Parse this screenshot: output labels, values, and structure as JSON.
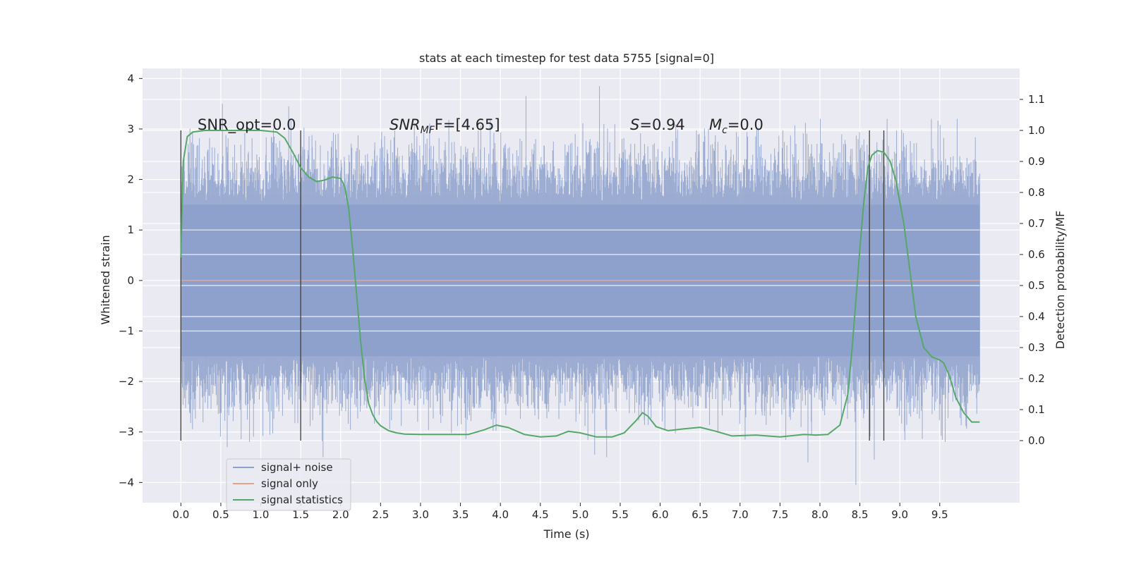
{
  "chart_data": {
    "type": "line",
    "title": "stats at each timestep for test data 5755 [signal=0]",
    "xlabel": "Time (s)",
    "ylabel_left": "Whitened strain",
    "ylabel_right": "Detection probability/MF",
    "xlim": [
      -0.48,
      10.5
    ],
    "ylim_left": [
      -4.4,
      4.2
    ],
    "ylim_right": [
      -0.2,
      1.2
    ],
    "x_ticks": [
      "0.0",
      "0.5",
      "1.0",
      "1.5",
      "2.0",
      "2.5",
      "3.0",
      "3.5",
      "4.0",
      "4.5",
      "5.0",
      "5.5",
      "6.0",
      "6.5",
      "7.0",
      "7.5",
      "8.0",
      "8.5",
      "9.0",
      "9.5"
    ],
    "y_left_ticks": [
      "−4",
      "−3",
      "−2",
      "−1",
      "0",
      "1",
      "2",
      "3",
      "4"
    ],
    "y_right_ticks": [
      "0.0",
      "0.1",
      "0.2",
      "0.3",
      "0.4",
      "0.5",
      "0.6",
      "0.7",
      "0.8",
      "0.9",
      "1.0",
      "1.1"
    ],
    "grid": true,
    "legend_position": "lower-left",
    "annotations": {
      "snr_opt": "SNR_opt=0.0",
      "snr_mf_prefix": "SNR",
      "snr_mf_sub": "MF",
      "snr_mf_suffix": "F=[4.65]",
      "s_prefix": "S",
      "s_suffix": "=0.94",
      "mc_prefix": "M",
      "mc_sub": "c",
      "mc_suffix": "=0.0"
    },
    "vertical_markers_x": [
      0.0,
      1.5,
      8.62,
      8.8
    ],
    "series": [
      {
        "name": "signal+ noise",
        "color": "#8da0cb",
        "axis": "left",
        "time_range": [
          0.0,
          10.0
        ],
        "typical_amplitude": [
          -2.4,
          2.6
        ],
        "notable_extremes": [
          {
            "x": 0.52,
            "y": 3.5
          },
          {
            "x": 1.35,
            "y": 3.45
          },
          {
            "x": 4.32,
            "y": 3.65
          },
          {
            "x": 5.24,
            "y": 3.85
          },
          {
            "x": 0.58,
            "y": -3.3
          },
          {
            "x": 1.78,
            "y": -3.5
          },
          {
            "x": 5.18,
            "y": -3.45
          },
          {
            "x": 5.33,
            "y": -3.5
          },
          {
            "x": 7.85,
            "y": -3.6
          },
          {
            "x": 8.45,
            "y": -4.05
          },
          {
            "x": 8.68,
            "y": -3.55
          }
        ]
      },
      {
        "name": "signal only",
        "color": "#e5a286",
        "axis": "left",
        "x": [
          0.0,
          10.0
        ],
        "y": [
          0.0,
          0.0
        ]
      },
      {
        "name": "signal statistics",
        "color": "#55a868",
        "axis": "right",
        "x": [
          0.0,
          0.03,
          0.08,
          0.15,
          0.3,
          0.6,
          1.0,
          1.2,
          1.3,
          1.4,
          1.5,
          1.6,
          1.7,
          1.8,
          1.9,
          2.0,
          2.05,
          2.1,
          2.15,
          2.2,
          2.25,
          2.3,
          2.35,
          2.4,
          2.45,
          2.5,
          2.55,
          2.6,
          2.7,
          2.8,
          3.0,
          3.3,
          3.6,
          3.8,
          3.95,
          4.1,
          4.3,
          4.5,
          4.7,
          4.85,
          5.0,
          5.2,
          5.4,
          5.55,
          5.7,
          5.78,
          5.85,
          5.95,
          6.1,
          6.3,
          6.5,
          6.7,
          6.9,
          7.2,
          7.5,
          7.8,
          7.95,
          8.1,
          8.25,
          8.35,
          8.4,
          8.45,
          8.5,
          8.55,
          8.6,
          8.65,
          8.72,
          8.8,
          8.88,
          8.95,
          9.05,
          9.1,
          9.15,
          9.2,
          9.3,
          9.4,
          9.5,
          9.55,
          9.62,
          9.7,
          9.8,
          9.9,
          10.0
        ],
        "y": [
          0.59,
          0.9,
          0.98,
          0.995,
          1.0,
          1.0,
          1.0,
          0.995,
          0.975,
          0.93,
          0.88,
          0.85,
          0.835,
          0.84,
          0.85,
          0.845,
          0.82,
          0.75,
          0.62,
          0.47,
          0.32,
          0.2,
          0.12,
          0.085,
          0.062,
          0.048,
          0.04,
          0.032,
          0.025,
          0.021,
          0.02,
          0.02,
          0.02,
          0.035,
          0.05,
          0.042,
          0.02,
          0.012,
          0.015,
          0.03,
          0.025,
          0.012,
          0.012,
          0.025,
          0.065,
          0.09,
          0.078,
          0.045,
          0.032,
          0.038,
          0.043,
          0.03,
          0.015,
          0.018,
          0.012,
          0.02,
          0.018,
          0.02,
          0.05,
          0.15,
          0.29,
          0.45,
          0.62,
          0.77,
          0.88,
          0.92,
          0.935,
          0.93,
          0.9,
          0.84,
          0.7,
          0.6,
          0.5,
          0.4,
          0.3,
          0.27,
          0.26,
          0.25,
          0.21,
          0.14,
          0.09,
          0.06,
          0.06
        ]
      }
    ]
  }
}
